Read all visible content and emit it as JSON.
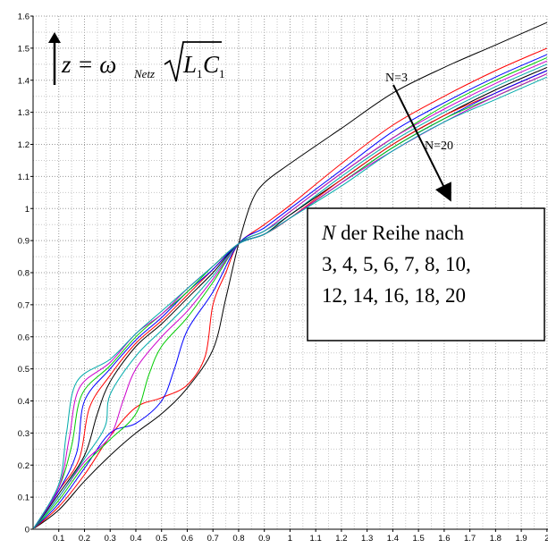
{
  "chart_data": {
    "type": "line",
    "title": "",
    "xlabel": "",
    "ylabel": "",
    "xlim": [
      0,
      2.0
    ],
    "ylim": [
      0,
      1.6
    ],
    "xticks": [
      "0.1",
      "0.2",
      "0.3",
      "0.4",
      "0.5",
      "0.6",
      "0.7",
      "0.8",
      "0.9",
      "1",
      "1.1",
      "1.2",
      "1.3",
      "1.4",
      "1.5",
      "1.6",
      "1.7",
      "1.8",
      "1.9",
      "2"
    ],
    "yticks": [
      "0",
      "0.1",
      "0.2",
      "0.3",
      "0.4",
      "0.5",
      "0.6",
      "0.7",
      "0.8",
      "0.9",
      "1",
      "1.1",
      "1.2",
      "1.3",
      "1.4",
      "1.5",
      "1.6"
    ],
    "grid": "dotted",
    "formula": {
      "lhs": "z = ω",
      "sub": "Netz",
      "radicand_L": "L",
      "radicand_L_sub": "1",
      "radicand_C": "C",
      "radicand_C_sub": "1"
    },
    "annotations": {
      "label_n3": "N=3",
      "label_n20": "N=20",
      "box_line1_italic": "N",
      "box_line1_rest": " der Reihe nach",
      "box_line2": "3, 4, 5, 6, 7, 8, 10,",
      "box_line3": "12, 14, 16, 18, 20"
    },
    "series": [
      {
        "name": "N=3",
        "color": "#000000",
        "values": [
          [
            0,
            0
          ],
          [
            0.1,
            0.06
          ],
          [
            0.2,
            0.15
          ],
          [
            0.3,
            0.23
          ],
          [
            0.4,
            0.3
          ],
          [
            0.5,
            0.36
          ],
          [
            0.6,
            0.44
          ],
          [
            0.7,
            0.56
          ],
          [
            0.75,
            0.72
          ],
          [
            0.8,
            0.89
          ],
          [
            0.85,
            1.02
          ],
          [
            0.9,
            1.08
          ],
          [
            1.0,
            1.14
          ],
          [
            1.2,
            1.25
          ],
          [
            1.4,
            1.36
          ],
          [
            1.6,
            1.44
          ],
          [
            1.8,
            1.51
          ],
          [
            2.0,
            1.58
          ]
        ]
      },
      {
        "name": "N=4",
        "color": "#ff0000",
        "values": [
          [
            0,
            0
          ],
          [
            0.1,
            0.07
          ],
          [
            0.2,
            0.17
          ],
          [
            0.3,
            0.29
          ],
          [
            0.4,
            0.38
          ],
          [
            0.5,
            0.41
          ],
          [
            0.6,
            0.45
          ],
          [
            0.67,
            0.54
          ],
          [
            0.7,
            0.7
          ],
          [
            0.75,
            0.8
          ],
          [
            0.8,
            0.89
          ],
          [
            0.9,
            0.95
          ],
          [
            1.0,
            1.01
          ],
          [
            1.2,
            1.14
          ],
          [
            1.4,
            1.26
          ],
          [
            1.6,
            1.35
          ],
          [
            1.8,
            1.43
          ],
          [
            2.0,
            1.5
          ]
        ]
      },
      {
        "name": "N=5",
        "color": "#0000ff",
        "values": [
          [
            0,
            0
          ],
          [
            0.1,
            0.08
          ],
          [
            0.2,
            0.19
          ],
          [
            0.3,
            0.3
          ],
          [
            0.4,
            0.33
          ],
          [
            0.5,
            0.4
          ],
          [
            0.55,
            0.5
          ],
          [
            0.6,
            0.62
          ],
          [
            0.7,
            0.74
          ],
          [
            0.8,
            0.89
          ],
          [
            0.9,
            0.94
          ],
          [
            1.0,
            1.0
          ],
          [
            1.2,
            1.12
          ],
          [
            1.4,
            1.24
          ],
          [
            1.6,
            1.33
          ],
          [
            1.8,
            1.41
          ],
          [
            2.0,
            1.48
          ]
        ]
      },
      {
        "name": "N=6",
        "color": "#00cc00",
        "values": [
          [
            0,
            0
          ],
          [
            0.1,
            0.09
          ],
          [
            0.2,
            0.2
          ],
          [
            0.3,
            0.28
          ],
          [
            0.4,
            0.36
          ],
          [
            0.45,
            0.48
          ],
          [
            0.5,
            0.57
          ],
          [
            0.6,
            0.66
          ],
          [
            0.7,
            0.77
          ],
          [
            0.8,
            0.89
          ],
          [
            0.9,
            0.93
          ],
          [
            1.0,
            0.99
          ],
          [
            1.2,
            1.11
          ],
          [
            1.4,
            1.22
          ],
          [
            1.6,
            1.32
          ],
          [
            1.8,
            1.4
          ],
          [
            2.0,
            1.47
          ]
        ]
      },
      {
        "name": "N=7",
        "color": "#cc00cc",
        "values": [
          [
            0,
            0
          ],
          [
            0.1,
            0.1
          ],
          [
            0.2,
            0.21
          ],
          [
            0.3,
            0.29
          ],
          [
            0.35,
            0.4
          ],
          [
            0.4,
            0.5
          ],
          [
            0.5,
            0.6
          ],
          [
            0.6,
            0.68
          ],
          [
            0.7,
            0.78
          ],
          [
            0.8,
            0.89
          ],
          [
            0.9,
            0.93
          ],
          [
            1.0,
            0.99
          ],
          [
            1.2,
            1.11
          ],
          [
            1.4,
            1.22
          ],
          [
            1.6,
            1.31
          ],
          [
            1.8,
            1.39
          ],
          [
            2.0,
            1.46
          ]
        ]
      },
      {
        "name": "N=8",
        "color": "#00aaaa",
        "values": [
          [
            0,
            0
          ],
          [
            0.1,
            0.1
          ],
          [
            0.2,
            0.22
          ],
          [
            0.28,
            0.32
          ],
          [
            0.3,
            0.42
          ],
          [
            0.4,
            0.54
          ],
          [
            0.5,
            0.62
          ],
          [
            0.6,
            0.7
          ],
          [
            0.7,
            0.79
          ],
          [
            0.8,
            0.89
          ],
          [
            0.9,
            0.93
          ],
          [
            1.0,
            0.98
          ],
          [
            1.2,
            1.1
          ],
          [
            1.4,
            1.21
          ],
          [
            1.6,
            1.3
          ],
          [
            1.8,
            1.38
          ],
          [
            2.0,
            1.45
          ]
        ]
      },
      {
        "name": "N=10",
        "color": "#000000",
        "values": [
          [
            0,
            0
          ],
          [
            0.1,
            0.11
          ],
          [
            0.2,
            0.23
          ],
          [
            0.25,
            0.36
          ],
          [
            0.3,
            0.46
          ],
          [
            0.4,
            0.57
          ],
          [
            0.5,
            0.64
          ],
          [
            0.6,
            0.72
          ],
          [
            0.7,
            0.8
          ],
          [
            0.8,
            0.89
          ],
          [
            0.9,
            0.92
          ],
          [
            1.0,
            0.98
          ],
          [
            1.2,
            1.09
          ],
          [
            1.4,
            1.2
          ],
          [
            1.6,
            1.29
          ],
          [
            1.8,
            1.37
          ],
          [
            2.0,
            1.44
          ]
        ]
      },
      {
        "name": "N=12",
        "color": "#ff0000",
        "values": [
          [
            0,
            0
          ],
          [
            0.1,
            0.12
          ],
          [
            0.18,
            0.22
          ],
          [
            0.22,
            0.38
          ],
          [
            0.3,
            0.48
          ],
          [
            0.4,
            0.58
          ],
          [
            0.5,
            0.65
          ],
          [
            0.6,
            0.73
          ],
          [
            0.7,
            0.81
          ],
          [
            0.8,
            0.89
          ],
          [
            0.9,
            0.92
          ],
          [
            1.0,
            0.97
          ],
          [
            1.2,
            1.09
          ],
          [
            1.4,
            1.2
          ],
          [
            1.6,
            1.29
          ],
          [
            1.8,
            1.36
          ],
          [
            2.0,
            1.43
          ]
        ]
      },
      {
        "name": "N=14",
        "color": "#0000ff",
        "values": [
          [
            0,
            0
          ],
          [
            0.1,
            0.12
          ],
          [
            0.17,
            0.24
          ],
          [
            0.2,
            0.4
          ],
          [
            0.3,
            0.5
          ],
          [
            0.4,
            0.59
          ],
          [
            0.5,
            0.66
          ],
          [
            0.6,
            0.74
          ],
          [
            0.7,
            0.81
          ],
          [
            0.8,
            0.89
          ],
          [
            0.9,
            0.92
          ],
          [
            1.0,
            0.97
          ],
          [
            1.2,
            1.08
          ],
          [
            1.4,
            1.19
          ],
          [
            1.6,
            1.28
          ],
          [
            1.8,
            1.36
          ],
          [
            2.0,
            1.43
          ]
        ]
      },
      {
        "name": "N=16",
        "color": "#00cc00",
        "values": [
          [
            0,
            0
          ],
          [
            0.1,
            0.13
          ],
          [
            0.15,
            0.26
          ],
          [
            0.19,
            0.42
          ],
          [
            0.3,
            0.51
          ],
          [
            0.4,
            0.6
          ],
          [
            0.5,
            0.67
          ],
          [
            0.6,
            0.74
          ],
          [
            0.7,
            0.82
          ],
          [
            0.8,
            0.89
          ],
          [
            0.9,
            0.92
          ],
          [
            1.0,
            0.97
          ],
          [
            1.2,
            1.08
          ],
          [
            1.4,
            1.19
          ],
          [
            1.6,
            1.28
          ],
          [
            1.8,
            1.35
          ],
          [
            2.0,
            1.42
          ]
        ]
      },
      {
        "name": "N=18",
        "color": "#cc00cc",
        "values": [
          [
            0,
            0
          ],
          [
            0.1,
            0.13
          ],
          [
            0.14,
            0.28
          ],
          [
            0.18,
            0.44
          ],
          [
            0.3,
            0.52
          ],
          [
            0.4,
            0.61
          ],
          [
            0.5,
            0.67
          ],
          [
            0.6,
            0.75
          ],
          [
            0.7,
            0.82
          ],
          [
            0.8,
            0.89
          ],
          [
            0.9,
            0.92
          ],
          [
            1.0,
            0.97
          ],
          [
            1.2,
            1.08
          ],
          [
            1.4,
            1.18
          ],
          [
            1.6,
            1.27
          ],
          [
            1.8,
            1.35
          ],
          [
            2.0,
            1.42
          ]
        ]
      },
      {
        "name": "N=20",
        "color": "#00aaaa",
        "values": [
          [
            0,
            0
          ],
          [
            0.1,
            0.14
          ],
          [
            0.13,
            0.3
          ],
          [
            0.17,
            0.46
          ],
          [
            0.3,
            0.53
          ],
          [
            0.4,
            0.61
          ],
          [
            0.5,
            0.68
          ],
          [
            0.6,
            0.75
          ],
          [
            0.7,
            0.82
          ],
          [
            0.8,
            0.89
          ],
          [
            0.9,
            0.92
          ],
          [
            1.0,
            0.97
          ],
          [
            1.2,
            1.07
          ],
          [
            1.4,
            1.18
          ],
          [
            1.6,
            1.27
          ],
          [
            1.8,
            1.34
          ],
          [
            2.0,
            1.41
          ]
        ]
      }
    ]
  }
}
